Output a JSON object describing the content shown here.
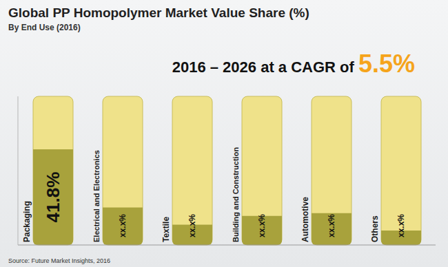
{
  "chart_data": {
    "type": "bar",
    "title": "Global PP Homopolymer Market Value Share (%)",
    "subtitle": "By End Use (2016)",
    "annotations": [
      "2016 – 2026 at a CAGR of 5.5%"
    ],
    "source": "Source: Future Market Insights, 2016",
    "categories": [
      "Packaging",
      "Electrical and Electronics",
      "Textile",
      "Building and Construction",
      "Automotive",
      "Others"
    ],
    "values": [
      41.8,
      16.4,
      8.9,
      12.7,
      13.9,
      6.3
    ],
    "value_labels": [
      "41.8%",
      "xx.x%",
      "xx.x%",
      "xx.x%",
      "xx.x%",
      "xx.x%"
    ],
    "color": "#a8a23c",
    "ylim": [
      0,
      65
    ],
    "data_labels": true,
    "tick_labels": "x",
    "grid": false
  }
}
